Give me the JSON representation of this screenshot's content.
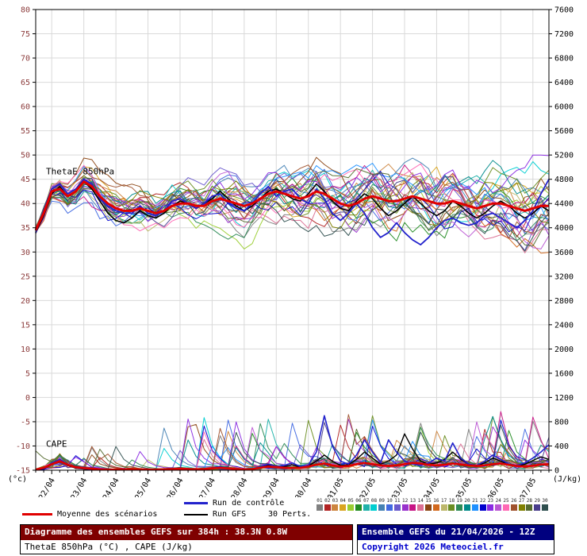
{
  "chart_data": {
    "type": "line",
    "title": "Diagramme des ensembles GEFS sur 384h : 38.3N 0.8W",
    "subtitle": "ThetaE 850hPa (°C) , CAPE (J/kg)",
    "run_info": "Ensemble GEFS du 21/04/2026 - 12Z",
    "copyright": "Copyright 2026 Meteociel.fr",
    "hours_total": 384,
    "step_hours": 6,
    "x_tick_labels": [
      "22/04",
      "23/04",
      "24/04",
      "25/04",
      "26/04",
      "27/04",
      "28/04",
      "29/04",
      "30/04",
      "01/05",
      "02/05",
      "03/05",
      "04/05",
      "05/05",
      "06/05",
      "07/05"
    ],
    "left_axis": {
      "label": "ThetaE 850hPa",
      "unit_label": "(°c)",
      "min": -15,
      "max": 80,
      "step": 5
    },
    "right_axis": {
      "label": "CAPE",
      "unit_label": "(J/kg)",
      "min": 0,
      "max": 7600,
      "step": 400
    },
    "grid": true,
    "legend_position": "bottom",
    "series": {
      "mean_thetae": [
        34.5,
        38,
        42.5,
        43,
        41.5,
        42.5,
        44.5,
        43.5,
        41.5,
        40,
        39,
        38.5,
        38.5,
        39,
        38.5,
        38,
        38.5,
        39.5,
        40,
        40,
        39.5,
        39.5,
        40.5,
        41,
        40.5,
        40,
        39.5,
        40,
        41,
        42,
        42.5,
        42,
        41.5,
        41,
        41.5,
        42.5,
        42,
        41,
        40,
        39.5,
        40,
        41,
        41.5,
        41,
        40.5,
        40.5,
        41,
        41.5,
        41,
        40.5,
        40,
        40,
        40.5,
        40,
        39.5,
        39,
        39.5,
        40,
        40,
        39.5,
        39,
        38.5,
        39,
        39.5,
        39.5
      ],
      "control_thetae": [
        34,
        38.5,
        43,
        44,
        42,
        43,
        45,
        44,
        41,
        39.5,
        38.5,
        38,
        38,
        39.5,
        38,
        37.5,
        38.5,
        40.5,
        41,
        40,
        39,
        40,
        41.5,
        42,
        40,
        39,
        38.5,
        40,
        42,
        43.5,
        41.5,
        42.5,
        43,
        41,
        40,
        43,
        41,
        38,
        36.5,
        38,
        40,
        38,
        35,
        33,
        34,
        36,
        34,
        32.5,
        31.5,
        33,
        35,
        36.5,
        37,
        36,
        35.5,
        36,
        37.5,
        38,
        37,
        36,
        35,
        36.5,
        38.5,
        42,
        45
      ],
      "gfs_thetae": [
        34,
        37.5,
        42,
        43.5,
        41.5,
        42.5,
        44.5,
        43,
        40.5,
        38,
        36.5,
        36,
        37,
        38.5,
        37.5,
        37,
        38,
        39.5,
        40.5,
        40,
        39,
        40,
        41,
        42.5,
        41,
        39.5,
        38.5,
        39.5,
        41,
        42.5,
        43,
        42,
        41,
        40.5,
        42,
        44,
        42.5,
        40.5,
        39,
        38.5,
        40.5,
        42,
        41,
        39,
        37.5,
        38.5,
        40,
        41.5,
        40,
        38.5,
        37.5,
        38.5,
        40.5,
        39.5,
        38,
        37,
        38,
        39.5,
        40.5,
        39.5,
        38,
        37,
        38,
        39.5,
        38.5
      ],
      "mean_cape": [
        10,
        40,
        100,
        150,
        90,
        50,
        35,
        25,
        15,
        10,
        10,
        15,
        20,
        15,
        10,
        10,
        15,
        20,
        25,
        20,
        15,
        20,
        30,
        40,
        30,
        20,
        15,
        20,
        40,
        60,
        50,
        40,
        35,
        40,
        60,
        90,
        110,
        80,
        60,
        70,
        100,
        120,
        100,
        80,
        70,
        80,
        100,
        120,
        110,
        90,
        80,
        90,
        110,
        95,
        80,
        70,
        80,
        100,
        110,
        90,
        70,
        60,
        75,
        95,
        100
      ],
      "control_cape": [
        5,
        30,
        120,
        180,
        100,
        40,
        25,
        15,
        10,
        5,
        5,
        10,
        15,
        10,
        5,
        5,
        10,
        20,
        30,
        15,
        10,
        15,
        40,
        60,
        30,
        15,
        10,
        20,
        60,
        100,
        60,
        80,
        120,
        60,
        80,
        300,
        900,
        400,
        150,
        100,
        250,
        500,
        300,
        120,
        500,
        300,
        150,
        100,
        80,
        120,
        200,
        150,
        450,
        200,
        100,
        80,
        150,
        250,
        180,
        100,
        80,
        120,
        200,
        300,
        420
      ],
      "gfs_cape": [
        5,
        25,
        90,
        140,
        80,
        35,
        20,
        10,
        8,
        5,
        5,
        8,
        12,
        8,
        5,
        5,
        10,
        15,
        20,
        12,
        8,
        12,
        25,
        45,
        25,
        12,
        8,
        15,
        45,
        80,
        50,
        60,
        90,
        50,
        70,
        150,
        250,
        150,
        80,
        90,
        180,
        300,
        200,
        100,
        150,
        250,
        600,
        350,
        150,
        100,
        120,
        180,
        300,
        180,
        100,
        80,
        120,
        200,
        150,
        90,
        70,
        100,
        160,
        220,
        180
      ]
    },
    "ensemble": {
      "count": 30,
      "seed": 42,
      "colors": [
        "#808080",
        "#b22222",
        "#cd853f",
        "#daa520",
        "#9acd32",
        "#228b22",
        "#20b2aa",
        "#00ced1",
        "#4682b4",
        "#4169e1",
        "#6a5acd",
        "#9932cc",
        "#c71585",
        "#db7093",
        "#8b4513",
        "#d2691e",
        "#bdb76b",
        "#6b8e23",
        "#2e8b57",
        "#008b8b",
        "#1e90ff",
        "#0000cd",
        "#8a2be2",
        "#ba55d3",
        "#ff69b4",
        "#a0522d",
        "#808000",
        "#556b2f",
        "#483d8b",
        "#2f4f4f"
      ]
    }
  },
  "legend": {
    "mean_label": "Moyenne des scénarios",
    "control_label": "Run de contrôle",
    "gfs_label": "Run GFS",
    "perts_label": "30 Perts.",
    "member_numbers": [
      "01",
      "02",
      "03",
      "04",
      "05",
      "06",
      "07",
      "08",
      "09",
      "10",
      "11",
      "12",
      "13",
      "14",
      "15",
      "16",
      "17",
      "18",
      "19",
      "20",
      "21",
      "22",
      "23",
      "24",
      "25",
      "26",
      "27",
      "28",
      "29",
      "30"
    ]
  },
  "colors": {
    "mean": "#e00000",
    "control": "#2222cc",
    "gfs": "#000000",
    "left_axis_text": "#8b3a3a",
    "right_axis_text": "#000000",
    "date_text": "#000000",
    "grid": "#d9d9d9",
    "title_bg": "#7f0000",
    "run_bg": "#00007f",
    "copyright_text": "#0000cc"
  }
}
